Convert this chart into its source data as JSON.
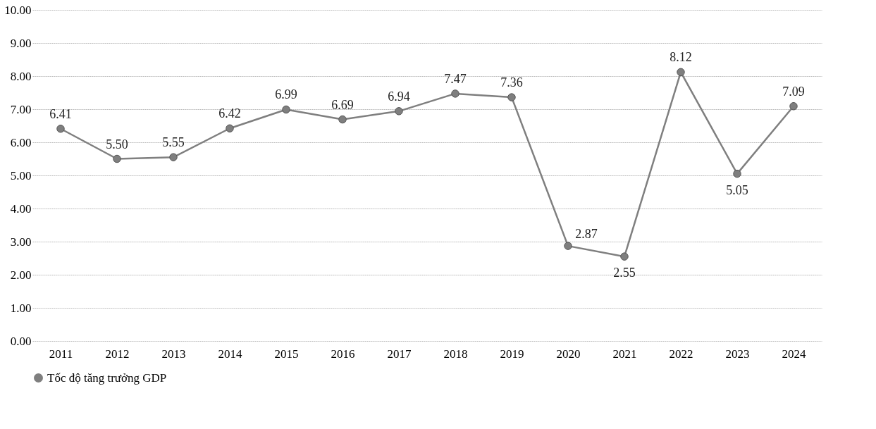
{
  "chart_data": {
    "type": "line",
    "categories": [
      "2011",
      "2012",
      "2013",
      "2014",
      "2015",
      "2016",
      "2017",
      "2018",
      "2019",
      "2020",
      "2021",
      "2022",
      "2023",
      "2024"
    ],
    "series": [
      {
        "name": "Tốc độ tăng trưởng GDP",
        "color": "#7f7f7f",
        "values": [
          6.41,
          5.5,
          5.55,
          6.42,
          6.99,
          6.69,
          6.94,
          7.47,
          7.36,
          2.87,
          2.55,
          8.12,
          5.05,
          7.09
        ]
      }
    ],
    "value_labels": [
      "6.41",
      "5.50",
      "5.55",
      "6.42",
      "6.99",
      "6.69",
      "6.94",
      "7.47",
      "7.36",
      "2.87",
      "2.55",
      "8.12",
      "5.05",
      "7.09"
    ],
    "ylim": [
      0,
      10
    ],
    "yticks": [
      {
        "value": 0,
        "label": "0.00"
      },
      {
        "value": 1,
        "label": "1.00"
      },
      {
        "value": 2,
        "label": "2.00"
      },
      {
        "value": 3,
        "label": "3.00"
      },
      {
        "value": 4,
        "label": "4.00"
      },
      {
        "value": 5,
        "label": "5.00"
      },
      {
        "value": 6,
        "label": "6.00"
      },
      {
        "value": 7,
        "label": "7.00"
      },
      {
        "value": 8,
        "label": "8.00"
      },
      {
        "value": 9,
        "label": "9.00"
      },
      {
        "value": 10,
        "label": "10.00"
      }
    ],
    "grid": "y",
    "legend": "bottom",
    "marker": "circle",
    "line_style": "solid"
  }
}
